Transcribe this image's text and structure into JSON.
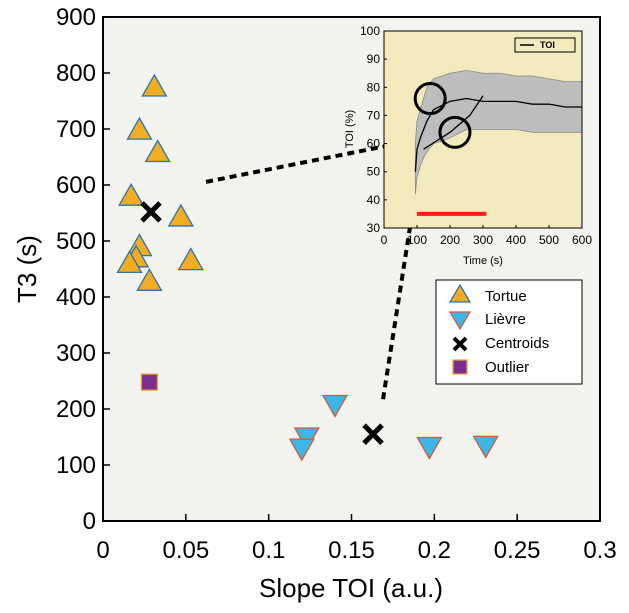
{
  "chart_data": [
    {
      "type": "scatter",
      "xlabel": "Slope TOI (a.u.)",
      "ylabel": "T3 (s)",
      "xlim": [
        0,
        0.3
      ],
      "ylim": [
        0,
        900
      ],
      "xticks": [
        0,
        0.05,
        0.1,
        0.15,
        0.2,
        0.25,
        0.3
      ],
      "xtick_labels": [
        "0",
        "0.05",
        "0.1",
        "0.15",
        "0.2",
        "0.25",
        "0.3"
      ],
      "yticks": [
        0,
        100,
        200,
        300,
        400,
        500,
        600,
        700,
        800,
        900
      ],
      "ytick_labels": [
        "0",
        "100",
        "200",
        "300",
        "400",
        "500",
        "600",
        "700",
        "800",
        "900"
      ],
      "grid": false,
      "legend_position": "bottom-right",
      "colors": {
        "background": "#f2f2ee",
        "tortue_fill": "#f2ac1f",
        "tortue_edge": "#2a74b8",
        "lievre_fill": "#3cb5e8",
        "lievre_edge": "#d9593b",
        "outlier_fill": "#7a2f8e",
        "outlier_edge": "#e8a13a",
        "centroid": "#000000"
      },
      "series": [
        {
          "name": "Tortue",
          "marker": "triangle-up",
          "points": [
            {
              "x": 0.031,
              "y": 775
            },
            {
              "x": 0.022,
              "y": 698
            },
            {
              "x": 0.033,
              "y": 658
            },
            {
              "x": 0.017,
              "y": 580
            },
            {
              "x": 0.047,
              "y": 543
            },
            {
              "x": 0.022,
              "y": 490
            },
            {
              "x": 0.02,
              "y": 470
            },
            {
              "x": 0.016,
              "y": 460
            },
            {
              "x": 0.053,
              "y": 465
            },
            {
              "x": 0.028,
              "y": 428
            }
          ]
        },
        {
          "name": "Lièvre",
          "marker": "triangle-down",
          "points": [
            {
              "x": 0.14,
              "y": 208
            },
            {
              "x": 0.123,
              "y": 150
            },
            {
              "x": 0.12,
              "y": 130
            },
            {
              "x": 0.197,
              "y": 133
            },
            {
              "x": 0.231,
              "y": 135
            }
          ]
        },
        {
          "name": "Centroids",
          "marker": "x",
          "points": [
            {
              "x": 0.029,
              "y": 552
            },
            {
              "x": 0.163,
              "y": 155
            }
          ]
        },
        {
          "name": "Outlier",
          "marker": "square",
          "points": [
            {
              "x": 0.028,
              "y": 248
            }
          ]
        }
      ]
    },
    {
      "type": "line",
      "xlabel": "Time (s)",
      "ylabel": "TOI (%)",
      "xlim": [
        0,
        600
      ],
      "ylim": [
        30,
        100
      ],
      "xticks": [
        0,
        100,
        200,
        300,
        400,
        500,
        600
      ],
      "xtick_labels": [
        "0",
        "100",
        "200",
        "300",
        "400",
        "500",
        "600"
      ],
      "yticks": [
        30,
        40,
        50,
        60,
        70,
        80,
        90,
        100
      ],
      "ytick_labels": [
        "30",
        "40",
        "50",
        "60",
        "70",
        "80",
        "90",
        "100"
      ],
      "legend_position": "top-right",
      "colors": {
        "background": "#f2e9bd",
        "band": "#bdbdbd",
        "line": "#000000",
        "highlight": "#ff1a1a"
      },
      "series": [
        {
          "name": "TOI",
          "x": [
            95,
            100,
            110,
            120,
            130,
            150,
            200,
            250,
            300,
            350,
            400,
            450,
            500,
            550,
            600
          ],
          "y": [
            50,
            58,
            62,
            65,
            68,
            72,
            75,
            76,
            75,
            75,
            75,
            74,
            74,
            73,
            73
          ]
        },
        {
          "name": "",
          "x": [
            120,
            160,
            200,
            260,
            300
          ],
          "y": [
            58,
            61,
            64,
            70,
            77
          ]
        }
      ],
      "band_upper": [
        60,
        68,
        72,
        76,
        80,
        83,
        85,
        86,
        85,
        85,
        84,
        84,
        83,
        82,
        82
      ],
      "band_lower": [
        42,
        48,
        52,
        55,
        57,
        60,
        62,
        65,
        65,
        65,
        65,
        64,
        64,
        64,
        64
      ],
      "highlight_range": {
        "x": [
          100,
          310
        ],
        "y": 35
      },
      "circled_points": [
        {
          "x": 140,
          "y": 76
        },
        {
          "x": 215,
          "y": 64
        }
      ]
    }
  ],
  "legend": [
    {
      "label": "Tortue",
      "marker": "triangle-up"
    },
    {
      "label": "Lièvre",
      "marker": "triangle-down"
    },
    {
      "label": "Centroids",
      "marker": "x"
    },
    {
      "label": "Outlier",
      "marker": "square"
    }
  ],
  "inset_legend": [
    {
      "label": "TOI"
    }
  ]
}
